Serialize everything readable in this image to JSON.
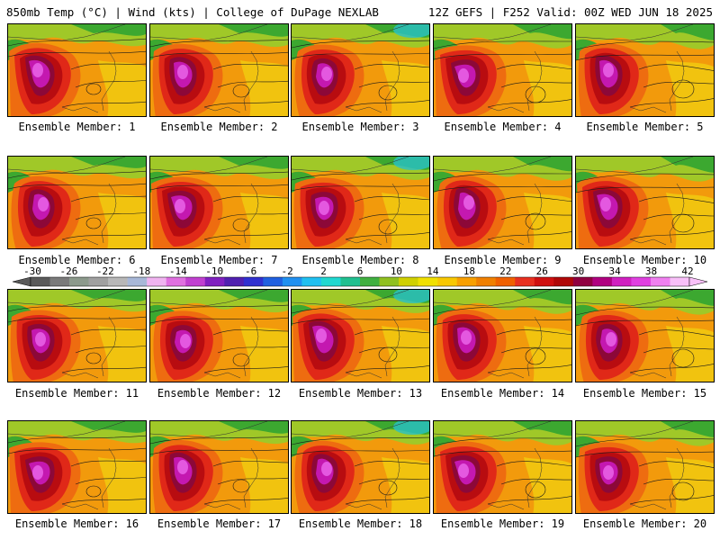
{
  "header": {
    "left": "850mb Temp (°C) | Wind (kts) | College of DuPage NEXLAB",
    "right": "12Z GEFS | F252 Valid: 00Z WED JUN 18 2025"
  },
  "members": [
    {
      "label": "Ensemble Member: 1",
      "icon": "temperature-map"
    },
    {
      "label": "Ensemble Member: 2",
      "icon": "temperature-map"
    },
    {
      "label": "Ensemble Member: 3",
      "icon": "temperature-map"
    },
    {
      "label": "Ensemble Member: 4",
      "icon": "temperature-map"
    },
    {
      "label": "Ensemble Member: 5",
      "icon": "temperature-map"
    },
    {
      "label": "Ensemble Member: 6",
      "icon": "temperature-map"
    },
    {
      "label": "Ensemble Member: 7",
      "icon": "temperature-map"
    },
    {
      "label": "Ensemble Member: 8",
      "icon": "temperature-map"
    },
    {
      "label": "Ensemble Member: 9",
      "icon": "temperature-map"
    },
    {
      "label": "Ensemble Member: 10",
      "icon": "temperature-map"
    },
    {
      "label": "Ensemble Member: 11",
      "icon": "temperature-map"
    },
    {
      "label": "Ensemble Member: 12",
      "icon": "temperature-map"
    },
    {
      "label": "Ensemble Member: 13",
      "icon": "temperature-map"
    },
    {
      "label": "Ensemble Member: 14",
      "icon": "temperature-map"
    },
    {
      "label": "Ensemble Member: 15",
      "icon": "temperature-map"
    },
    {
      "label": "Ensemble Member: 16",
      "icon": "temperature-map"
    },
    {
      "label": "Ensemble Member: 17",
      "icon": "temperature-map"
    },
    {
      "label": "Ensemble Member: 18",
      "icon": "temperature-map"
    },
    {
      "label": "Ensemble Member: 19",
      "icon": "temperature-map"
    },
    {
      "label": "Ensemble Member: 20",
      "icon": "temperature-map"
    }
  ],
  "colorbar": {
    "labels": [
      "-30",
      "-26",
      "-22",
      "-18",
      "-14",
      "-10",
      "-6",
      "-2",
      "2",
      "6",
      "10",
      "14",
      "18",
      "22",
      "26",
      "30",
      "34",
      "38",
      "42"
    ],
    "colors": [
      "#5a5a5a",
      "#7a7a7a",
      "#8c9a8c",
      "#a0a0a0",
      "#b8b8b8",
      "#a8b8d8",
      "#f0b4f0",
      "#e070e0",
      "#c040d0",
      "#8020c0",
      "#5020b0",
      "#3030d0",
      "#2060e0",
      "#2090f0",
      "#20c0f0",
      "#20d8d0",
      "#20c090",
      "#40b040",
      "#90c020",
      "#d0d000",
      "#f0e000",
      "#f8c800",
      "#f8a000",
      "#f08000",
      "#f06000",
      "#e83020",
      "#d01010",
      "#b00808",
      "#900040",
      "#b00080",
      "#d020c0",
      "#e040e0",
      "#f080f0",
      "#f8c0f8"
    ]
  },
  "field_colors": {
    "green": "#3ca830",
    "yellowgreen": "#a0c828",
    "yellow": "#f0d010",
    "orange": "#f29a0c",
    "darkorange": "#ee6c10",
    "red": "#e02818",
    "darkred": "#b80c10",
    "maroon": "#8c0838",
    "magenta": "#c418b0",
    "pink": "#e458e0",
    "cyan": "#28c0c8"
  }
}
